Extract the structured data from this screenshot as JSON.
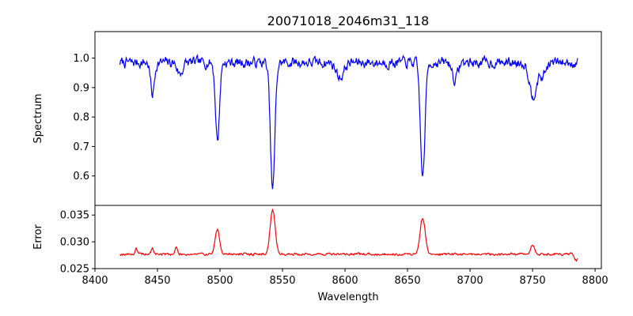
{
  "chart_data": {
    "type": "line",
    "title": "20071018_2046m31_118",
    "xlabel": "Wavelength",
    "xlim": [
      8400,
      8805
    ],
    "x_ticks": [
      8400,
      8450,
      8500,
      8550,
      8600,
      8650,
      8700,
      8750,
      8800
    ],
    "x_range": [
      8420,
      8786
    ],
    "panels": [
      {
        "name": "spectrum-panel",
        "ylabel": "Spectrum",
        "ylim": [
          0.5,
          1.09
        ],
        "y_ticks": [
          0.6,
          0.7,
          0.8,
          0.9,
          1.0
        ],
        "y_tick_labels": [
          "0.6",
          "0.7",
          "0.8",
          "0.9",
          "1.0"
        ],
        "color": "#0000ff",
        "baseline": 0.985,
        "noise": 0.032,
        "features": [
          {
            "center": 8446,
            "depth": 0.11,
            "width": 1.5
          },
          {
            "center": 8468,
            "depth": 0.04,
            "width": 2.0
          },
          {
            "center": 8498.0,
            "depth": 0.265,
            "width": 1.6
          },
          {
            "center": 8542.1,
            "depth": 0.43,
            "width": 1.8
          },
          {
            "center": 8596,
            "depth": 0.05,
            "width": 3.0
          },
          {
            "center": 8662.1,
            "depth": 0.39,
            "width": 1.8
          },
          {
            "center": 8688,
            "depth": 0.06,
            "width": 2.0
          },
          {
            "center": 8750,
            "depth": 0.11,
            "width": 2.5
          },
          {
            "center": 8757,
            "depth": 0.05,
            "width": 3.0
          }
        ]
      },
      {
        "name": "error-panel",
        "ylabel": "Error",
        "ylim": [
          0.025,
          0.0368
        ],
        "y_ticks": [
          0.025,
          0.03,
          0.035
        ],
        "y_tick_labels": [
          "0.025",
          "0.030",
          "0.035"
        ],
        "color": "#ff0000",
        "baseline": 0.0277,
        "noise": 0.0004,
        "features": [
          {
            "center": 8433,
            "depth": -0.0012,
            "width": 0.8
          },
          {
            "center": 8446,
            "depth": -0.001,
            "width": 1.0
          },
          {
            "center": 8465,
            "depth": -0.0014,
            "width": 0.8
          },
          {
            "center": 8498.0,
            "depth": -0.0045,
            "width": 1.8
          },
          {
            "center": 8542.1,
            "depth": -0.0082,
            "width": 2.0
          },
          {
            "center": 8662.1,
            "depth": -0.0068,
            "width": 2.0
          },
          {
            "center": 8750,
            "depth": -0.0018,
            "width": 1.5
          },
          {
            "center": 8785,
            "depth": 0.0012,
            "width": 1.5
          }
        ]
      }
    ]
  }
}
